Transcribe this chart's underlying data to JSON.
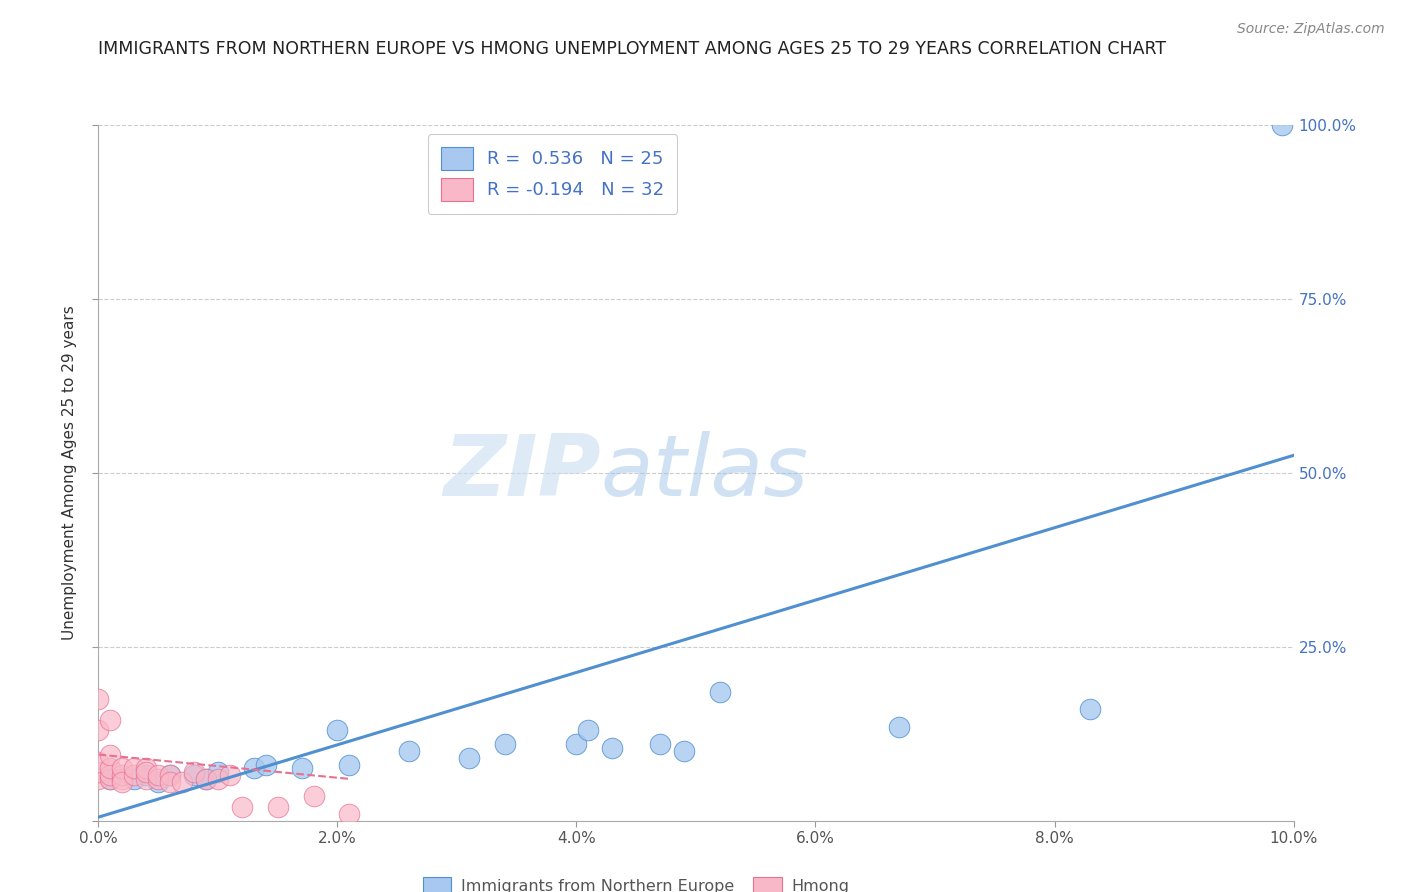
{
  "title": "IMMIGRANTS FROM NORTHERN EUROPE VS HMONG UNEMPLOYMENT AMONG AGES 25 TO 29 YEARS CORRELATION CHART",
  "source": "Source: ZipAtlas.com",
  "legend_label_blue": "Immigrants from Northern Europe",
  "legend_label_pink": "Hmong",
  "R_blue": " 0.536",
  "N_blue": "25",
  "R_pink": "-0.194",
  "N_pink": "32",
  "xlim": [
    0,
    0.1
  ],
  "ylim": [
    0,
    1.0
  ],
  "xticks": [
    0.0,
    0.02,
    0.04,
    0.06,
    0.08,
    0.1
  ],
  "yticks": [
    0.0,
    0.25,
    0.5,
    0.75,
    1.0
  ],
  "xtick_labels": [
    "0.0%",
    "2.0%",
    "4.0%",
    "6.0%",
    "8.0%",
    "10.0%"
  ],
  "right_ytick_labels": [
    "",
    "25.0%",
    "50.0%",
    "75.0%",
    "100.0%"
  ],
  "color_blue": "#A8C8F0",
  "color_pink": "#F8B8C8",
  "line_blue": "#5090D0",
  "line_pink": "#E87090",
  "watermark_zip": "ZIP",
  "watermark_atlas": "atlas",
  "blue_points_x": [
    0.001,
    0.003,
    0.004,
    0.005,
    0.006,
    0.008,
    0.009,
    0.01,
    0.013,
    0.014,
    0.017,
    0.02,
    0.021,
    0.026,
    0.031,
    0.034,
    0.04,
    0.041,
    0.043,
    0.047,
    0.049,
    0.052,
    0.067,
    0.083,
    0.099
  ],
  "blue_points_y": [
    0.06,
    0.06,
    0.065,
    0.055,
    0.065,
    0.065,
    0.06,
    0.07,
    0.075,
    0.08,
    0.075,
    0.13,
    0.08,
    0.1,
    0.09,
    0.11,
    0.11,
    0.13,
    0.105,
    0.11,
    0.1,
    0.185,
    0.135,
    0.16,
    1.0
  ],
  "pink_points_x": [
    0.0,
    0.0,
    0.0,
    0.0,
    0.0,
    0.001,
    0.001,
    0.001,
    0.001,
    0.001,
    0.002,
    0.002,
    0.002,
    0.002,
    0.003,
    0.003,
    0.004,
    0.004,
    0.004,
    0.005,
    0.005,
    0.006,
    0.006,
    0.007,
    0.008,
    0.009,
    0.01,
    0.011,
    0.012,
    0.015,
    0.018,
    0.021
  ],
  "pink_points_y": [
    0.06,
    0.07,
    0.085,
    0.13,
    0.175,
    0.06,
    0.065,
    0.075,
    0.095,
    0.145,
    0.06,
    0.065,
    0.075,
    0.055,
    0.065,
    0.075,
    0.06,
    0.075,
    0.07,
    0.06,
    0.065,
    0.065,
    0.055,
    0.055,
    0.07,
    0.06,
    0.06,
    0.065,
    0.02,
    0.02,
    0.035,
    0.01
  ],
  "blue_line_x": [
    0.0,
    0.1
  ],
  "blue_line_y": [
    0.005,
    0.525
  ],
  "pink_line_x": [
    0.0,
    0.021
  ],
  "pink_line_y": [
    0.095,
    0.06
  ]
}
